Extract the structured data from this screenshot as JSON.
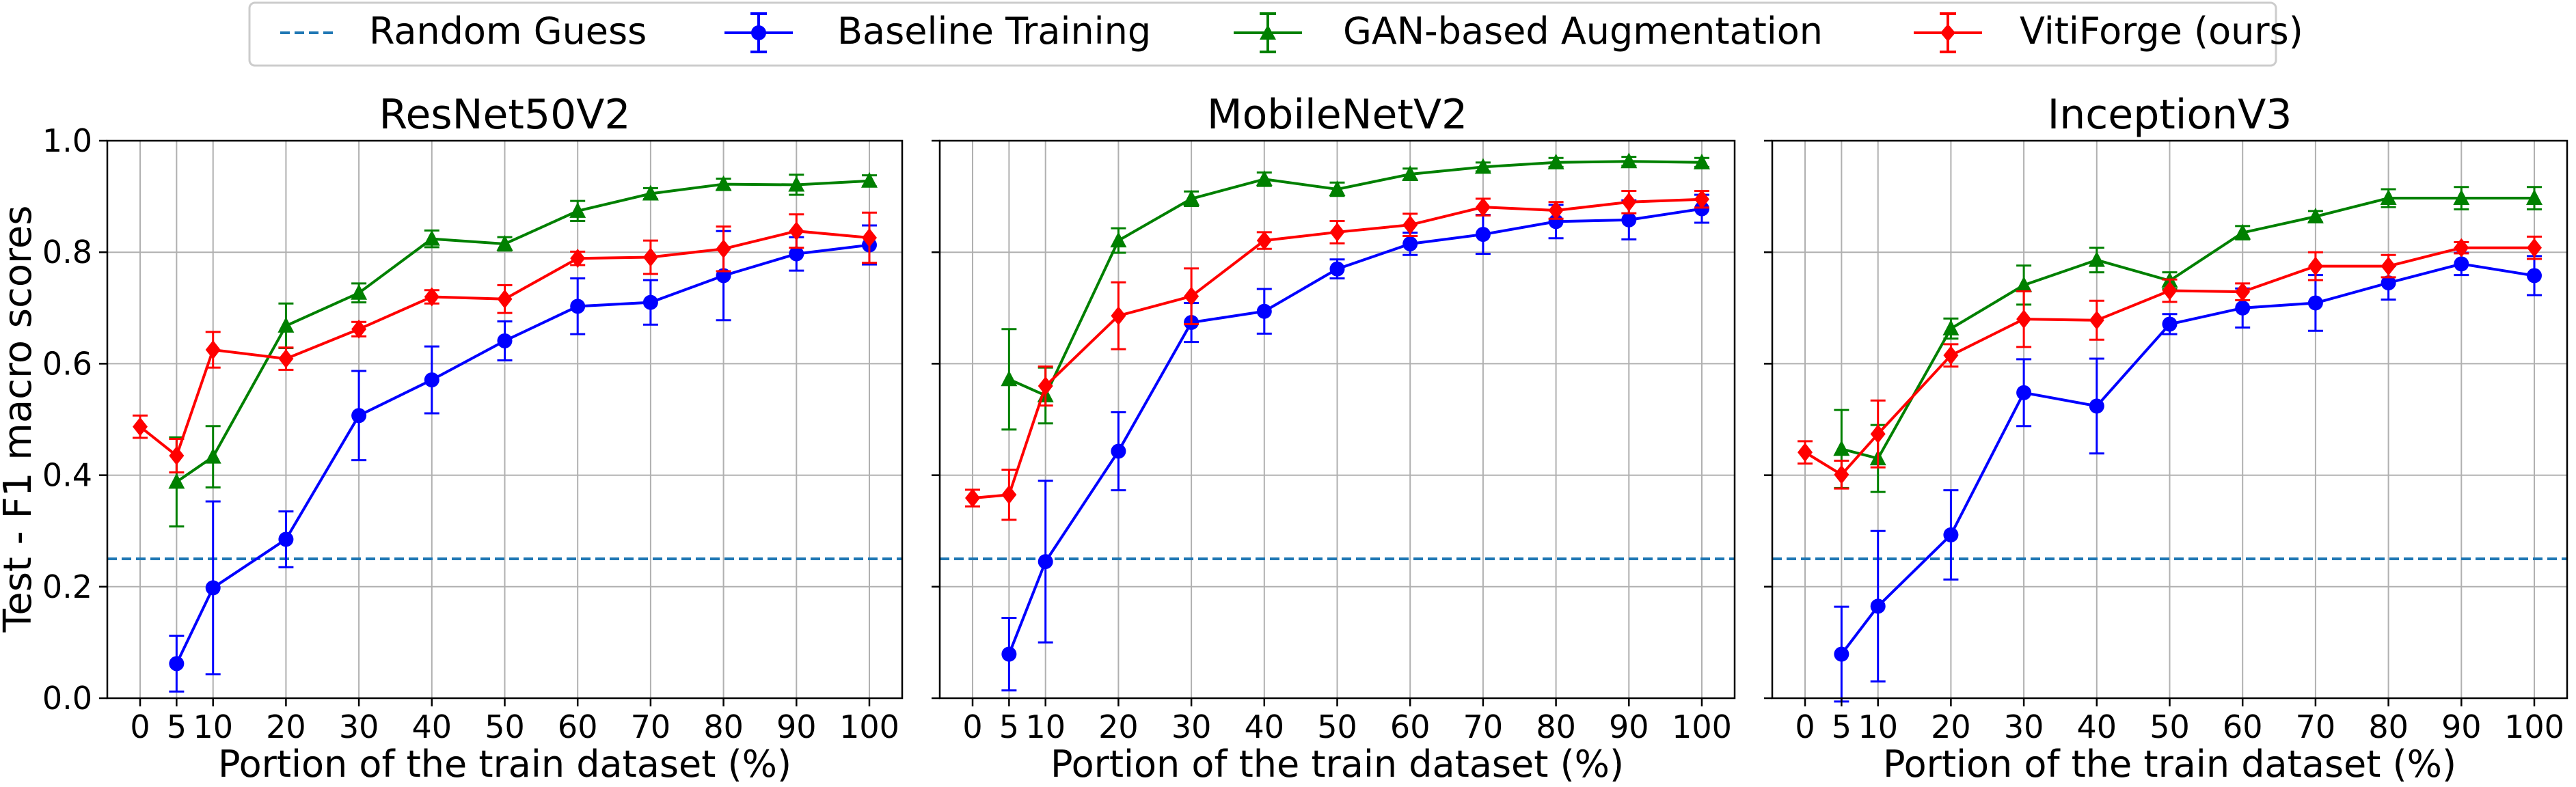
{
  "legend": {
    "items": [
      {
        "label": "Random Guess",
        "color": "#1f77b4",
        "style": "dashed",
        "marker": "none"
      },
      {
        "label": "Baseline Training",
        "color": "#0000ff",
        "style": "solid",
        "marker": "circle"
      },
      {
        "label": "GAN-based Augmentation",
        "color": "#008000",
        "style": "solid",
        "marker": "triangle"
      },
      {
        "label": "VitiForge (ours)",
        "color": "#ff0000",
        "style": "solid",
        "marker": "diamond"
      }
    ]
  },
  "chart_data": [
    {
      "type": "line",
      "title": "ResNet50V2",
      "xlabel": "Portion of the train dataset (%)",
      "ylabel": "Test - F1 macro scores",
      "xlim": [
        -4.5,
        104.5
      ],
      "ylim": [
        0.0,
        1.0
      ],
      "xticks": [
        0,
        5,
        10,
        20,
        30,
        40,
        50,
        60,
        70,
        80,
        90,
        100
      ],
      "yticks": [
        0.0,
        0.2,
        0.4,
        0.6,
        0.8,
        1.0
      ],
      "grid": true,
      "reference_lines": [
        {
          "name": "Random Guess",
          "y": 0.25
        }
      ],
      "series": [
        {
          "name": "Baseline Training",
          "x": [
            5,
            10,
            20,
            30,
            40,
            50,
            60,
            70,
            80,
            90,
            100
          ],
          "y": [
            0.062,
            0.198,
            0.285,
            0.507,
            0.571,
            0.641,
            0.703,
            0.71,
            0.758,
            0.797,
            0.813
          ],
          "err": [
            0.05,
            0.155,
            0.05,
            0.08,
            0.06,
            0.035,
            0.05,
            0.04,
            0.08,
            0.03,
            0.035
          ]
        },
        {
          "name": "GAN-based Augmentation",
          "x": [
            5,
            10,
            20,
            30,
            40,
            50,
            60,
            70,
            80,
            90,
            100
          ],
          "y": [
            0.388,
            0.433,
            0.668,
            0.727,
            0.824,
            0.815,
            0.874,
            0.905,
            0.922,
            0.921,
            0.928
          ],
          "err": [
            0.08,
            0.055,
            0.04,
            0.017,
            0.015,
            0.012,
            0.018,
            0.01,
            0.01,
            0.018,
            0.01
          ]
        },
        {
          "name": "VitiForge (ours)",
          "x": [
            0,
            5,
            10,
            20,
            30,
            40,
            50,
            60,
            70,
            80,
            90,
            100
          ],
          "y": [
            0.487,
            0.435,
            0.625,
            0.609,
            0.662,
            0.72,
            0.716,
            0.789,
            0.791,
            0.806,
            0.838,
            0.826
          ],
          "err": [
            0.02,
            0.03,
            0.032,
            0.02,
            0.013,
            0.012,
            0.025,
            0.012,
            0.03,
            0.04,
            0.03,
            0.045
          ]
        }
      ]
    },
    {
      "type": "line",
      "title": "MobileNetV2",
      "xlabel": "Portion of the train dataset (%)",
      "ylabel": "",
      "xlim": [
        -4.5,
        104.5
      ],
      "ylim": [
        0.0,
        1.0
      ],
      "xticks": [
        0,
        5,
        10,
        20,
        30,
        40,
        50,
        60,
        70,
        80,
        90,
        100
      ],
      "yticks": [
        0.0,
        0.2,
        0.4,
        0.6,
        0.8,
        1.0
      ],
      "grid": true,
      "reference_lines": [
        {
          "name": "Random Guess",
          "y": 0.25
        }
      ],
      "series": [
        {
          "name": "Baseline Training",
          "x": [
            5,
            10,
            20,
            30,
            40,
            50,
            60,
            70,
            80,
            90,
            100
          ],
          "y": [
            0.079,
            0.245,
            0.443,
            0.674,
            0.694,
            0.77,
            0.815,
            0.832,
            0.855,
            0.858,
            0.878
          ],
          "err": [
            0.065,
            0.145,
            0.07,
            0.035,
            0.04,
            0.017,
            0.02,
            0.035,
            0.03,
            0.035,
            0.025
          ]
        },
        {
          "name": "GAN-based Augmentation",
          "x": [
            5,
            10,
            20,
            30,
            40,
            50,
            60,
            70,
            80,
            90,
            100
          ],
          "y": [
            0.572,
            0.543,
            0.821,
            0.896,
            0.931,
            0.913,
            0.94,
            0.953,
            0.961,
            0.963,
            0.961
          ],
          "err": [
            0.09,
            0.05,
            0.022,
            0.013,
            0.012,
            0.012,
            0.01,
            0.008,
            0.008,
            0.008,
            0.008
          ]
        },
        {
          "name": "VitiForge (ours)",
          "x": [
            0,
            5,
            10,
            20,
            30,
            40,
            50,
            60,
            70,
            80,
            90,
            100
          ],
          "y": [
            0.359,
            0.365,
            0.56,
            0.686,
            0.721,
            0.821,
            0.836,
            0.849,
            0.881,
            0.875,
            0.89,
            0.895
          ],
          "err": [
            0.015,
            0.045,
            0.035,
            0.06,
            0.05,
            0.015,
            0.02,
            0.02,
            0.015,
            0.015,
            0.02,
            0.015
          ]
        }
      ]
    },
    {
      "type": "line",
      "title": "InceptionV3",
      "xlabel": "Portion of the train dataset (%)",
      "ylabel": "",
      "xlim": [
        -4.5,
        104.5
      ],
      "ylim": [
        0.0,
        1.0
      ],
      "xticks": [
        0,
        5,
        10,
        20,
        30,
        40,
        50,
        60,
        70,
        80,
        90,
        100
      ],
      "yticks": [
        0.0,
        0.2,
        0.4,
        0.6,
        0.8,
        1.0
      ],
      "grid": true,
      "reference_lines": [
        {
          "name": "Random Guess",
          "y": 0.25
        }
      ],
      "series": [
        {
          "name": "Baseline Training",
          "x": [
            5,
            10,
            20,
            30,
            40,
            50,
            60,
            70,
            80,
            90,
            100
          ],
          "y": [
            0.079,
            0.165,
            0.293,
            0.548,
            0.524,
            0.671,
            0.7,
            0.709,
            0.745,
            0.779,
            0.758
          ],
          "err": [
            0.085,
            0.135,
            0.08,
            0.06,
            0.085,
            0.018,
            0.035,
            0.05,
            0.03,
            0.02,
            0.035
          ]
        },
        {
          "name": "GAN-based Augmentation",
          "x": [
            5,
            10,
            20,
            30,
            40,
            50,
            60,
            70,
            80,
            90,
            100
          ],
          "y": [
            0.447,
            0.43,
            0.663,
            0.741,
            0.786,
            0.749,
            0.835,
            0.864,
            0.897,
            0.897,
            0.897
          ],
          "err": [
            0.07,
            0.06,
            0.018,
            0.035,
            0.022,
            0.015,
            0.012,
            0.01,
            0.016,
            0.02,
            0.02
          ]
        },
        {
          "name": "VitiForge (ours)",
          "x": [
            0,
            5,
            10,
            20,
            30,
            40,
            50,
            60,
            70,
            80,
            90,
            100
          ],
          "y": [
            0.441,
            0.401,
            0.474,
            0.615,
            0.68,
            0.678,
            0.731,
            0.729,
            0.775,
            0.775,
            0.808,
            0.808
          ],
          "err": [
            0.02,
            0.025,
            0.06,
            0.02,
            0.05,
            0.035,
            0.02,
            0.015,
            0.025,
            0.02,
            0.01,
            0.02
          ]
        }
      ]
    }
  ]
}
